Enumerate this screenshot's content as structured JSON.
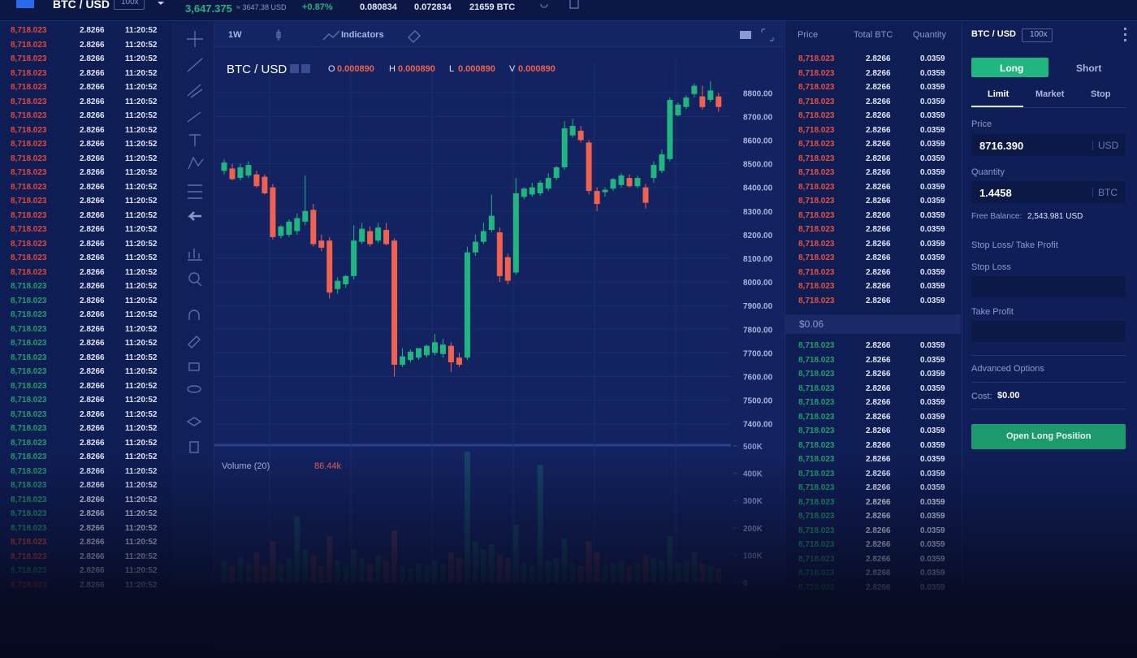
{
  "header": {
    "pair": "BTC / USD",
    "leverage": "100x",
    "price": "3,647.375",
    "price_usd": "≈ 3647.38 USD",
    "change": "+0.87%",
    "stats": [
      "0.080834",
      "0.072834",
      "21659 BTC"
    ]
  },
  "trades": {
    "rows": [
      [
        "8,718.023",
        "2.8266",
        "11:20:52"
      ],
      [
        "8,718.023",
        "2.8266",
        "11:20:52"
      ],
      [
        "8,718.023",
        "2.8266",
        "11:20:52"
      ],
      [
        "8,718.023",
        "2.8266",
        "11:20:52"
      ],
      [
        "8,718.023",
        "2.8266",
        "11:20:52"
      ],
      [
        "8,718.023",
        "2.8266",
        "11:20:52"
      ],
      [
        "8,718.023",
        "2.8266",
        "11:20:52"
      ],
      [
        "8,718.023",
        "2.8266",
        "11:20:52"
      ],
      [
        "8,718.023",
        "2.8266",
        "11:20:52"
      ],
      [
        "8,718.023",
        "2.8266",
        "11:20:52"
      ],
      [
        "8,718.023",
        "2.8266",
        "11:20:52"
      ],
      [
        "8,718.023",
        "2.8266",
        "11:20:52"
      ],
      [
        "8,718.023",
        "2.8266",
        "11:20:52"
      ],
      [
        "8,718.023",
        "2.8266",
        "11:20:52"
      ],
      [
        "8,718.023",
        "2.8266",
        "11:20:52"
      ],
      [
        "8,718.023",
        "2.8266",
        "11:20:52"
      ],
      [
        "8,718.023",
        "2.8266",
        "11:20:52"
      ],
      [
        "8,718.023",
        "2.8266",
        "11:20:52"
      ],
      [
        "8,718.023",
        "2.8266",
        "11:20:52"
      ],
      [
        "8,718.023",
        "2.8266",
        "11:20:52"
      ],
      [
        "8,718.023",
        "2.8266",
        "11:20:52"
      ],
      [
        "8,718.023",
        "2.8266",
        "11:20:52"
      ],
      [
        "8,718.023",
        "2.8266",
        "11:20:52"
      ],
      [
        "8,718.023",
        "2.8266",
        "11:20:52"
      ],
      [
        "8,718.023",
        "2.8266",
        "11:20:52"
      ],
      [
        "8,718.023",
        "2.8266",
        "11:20:52"
      ],
      [
        "8,718.023",
        "2.8266",
        "11:20:52"
      ],
      [
        "8,718.023",
        "2.8266",
        "11:20:52"
      ],
      [
        "8,718.023",
        "2.8266",
        "11:20:52"
      ],
      [
        "8,718.023",
        "2.8266",
        "11:20:52"
      ],
      [
        "8,718.023",
        "2.8266",
        "11:20:52"
      ],
      [
        "8,718.023",
        "2.8266",
        "11:20:52"
      ],
      [
        "8,718.023",
        "2.8266",
        "11:20:52"
      ],
      [
        "8,718.023",
        "2.8266",
        "11:20:52"
      ],
      [
        "8,718.023",
        "2.8266",
        "11:20:52"
      ],
      [
        "8,718.023",
        "2.8266",
        "11:20:52"
      ],
      [
        "8,718.023",
        "2.8266",
        "11:20:52"
      ],
      [
        "8,718.023",
        "2.8266",
        "11:20:52"
      ],
      [
        "8,718.023",
        "2.8266",
        "11:20:52"
      ],
      [
        "8,718.023",
        "2.8266",
        "11:20:52"
      ]
    ],
    "colors": [
      "#e0493a",
      "#e0493a",
      "#e0493a",
      "#e0493a",
      "#e0493a",
      "#e0493a",
      "#e0493a",
      "#e0493a",
      "#e0493a",
      "#e0493a",
      "#e0493a",
      "#e0493a",
      "#e0493a",
      "#e0493a",
      "#e0493a",
      "#e0493a",
      "#e0493a",
      "#e0493a",
      "#1f9f6c",
      "#1f9f6c",
      "#1f9f6c",
      "#1f9f6c",
      "#1f9f6c",
      "#1f9f6c",
      "#1f9f6c",
      "#1f9f6c",
      "#1f9f6c",
      "#1f9f6c",
      "#1f9f6c",
      "#1f9f6c",
      "#1f9f6c",
      "#1f9f6c",
      "#1f9f6c",
      "#1f9f6c",
      "#1f9f6c",
      "#1f9f6c",
      "#e0493a",
      "#e0493a",
      "#1f9f6c",
      "#e0493a"
    ]
  },
  "toolbar": {
    "interval": "1W",
    "indicators": "Indicators"
  },
  "chart": {
    "type": "candlestick",
    "title": "BTC / USD",
    "ohlc": [
      {
        "label": "O",
        "value": "0.000890"
      },
      {
        "label": "H",
        "value": "0.000890"
      },
      {
        "label": "L",
        "value": "0.000890"
      },
      {
        "label": "V",
        "value": "0.000890"
      }
    ],
    "up_color": "#1fb67f",
    "down_color": "#f0624d",
    "grid": true,
    "ylim": [
      7320,
      8935
    ],
    "yticks": [
      {
        "value": 8800,
        "label": "8800.00"
      },
      {
        "value": 8700,
        "label": "8700.00"
      },
      {
        "value": 8600,
        "label": "8600.00"
      },
      {
        "value": 8500,
        "label": "8500.00"
      },
      {
        "value": 8400,
        "label": "8400.00"
      },
      {
        "value": 8300,
        "label": "8300.00"
      },
      {
        "value": 8200,
        "label": "8200.00"
      },
      {
        "value": 8100,
        "label": "8100.00"
      },
      {
        "value": 8000,
        "label": "8000.00"
      },
      {
        "value": 7900,
        "label": "7900.00"
      },
      {
        "value": 7800,
        "label": "7800.00"
      },
      {
        "value": 7700,
        "label": "7700.00"
      },
      {
        "value": 7600,
        "label": "7600.00"
      },
      {
        "value": 7500,
        "label": "7500.00"
      },
      {
        "value": 7400,
        "label": "7400.00"
      }
    ],
    "candles": [
      [
        8470,
        8520,
        8455,
        8505
      ],
      [
        8480,
        8500,
        8430,
        8435
      ],
      [
        8440,
        8500,
        8430,
        8485
      ],
      [
        8450,
        8510,
        8440,
        8495
      ],
      [
        8455,
        8470,
        8400,
        8405
      ],
      [
        8445,
        8455,
        8370,
        8375
      ],
      [
        8400,
        8415,
        8180,
        8190
      ],
      [
        8195,
        8240,
        8185,
        8235
      ],
      [
        8200,
        8265,
        8190,
        8255
      ],
      [
        8215,
        8290,
        8200,
        8270
      ],
      [
        8255,
        8450,
        8240,
        8300
      ],
      [
        8305,
        8330,
        8150,
        8160
      ],
      [
        8175,
        8200,
        8130,
        8145
      ],
      [
        8175,
        8190,
        7930,
        7955
      ],
      [
        7970,
        8020,
        7950,
        8005
      ],
      [
        7990,
        8030,
        7975,
        8025
      ],
      [
        8025,
        8240,
        8010,
        8175
      ],
      [
        8170,
        8250,
        8160,
        8225
      ],
      [
        8215,
        8235,
        8150,
        8160
      ],
      [
        8175,
        8250,
        8165,
        8230
      ],
      [
        8220,
        8250,
        8155,
        8160
      ],
      [
        8175,
        8185,
        7600,
        7650
      ],
      [
        7650,
        7720,
        7640,
        7685
      ],
      [
        7670,
        7715,
        7660,
        7705
      ],
      [
        7680,
        7720,
        7670,
        7720
      ],
      [
        7690,
        7735,
        7680,
        7730
      ],
      [
        7700,
        7780,
        7690,
        7745
      ],
      [
        7695,
        7760,
        7680,
        7735
      ],
      [
        7730,
        7745,
        7620,
        7660
      ],
      [
        7680,
        7700,
        7640,
        7650
      ],
      [
        7680,
        8150,
        7670,
        8125
      ],
      [
        8125,
        8200,
        8110,
        8170
      ],
      [
        8170,
        8250,
        8160,
        8215
      ],
      [
        8220,
        8370,
        8210,
        8280
      ],
      [
        8210,
        8230,
        8000,
        8025
      ],
      [
        8105,
        8120,
        7990,
        8005
      ],
      [
        8040,
        8440,
        8030,
        8375
      ],
      [
        8360,
        8400,
        8350,
        8395
      ],
      [
        8370,
        8420,
        8360,
        8400
      ],
      [
        8375,
        8430,
        8365,
        8420
      ],
      [
        8395,
        8460,
        8385,
        8440
      ],
      [
        8440,
        8490,
        8430,
        8485
      ],
      [
        8485,
        8680,
        8475,
        8650
      ],
      [
        8620,
        8690,
        8610,
        8660
      ],
      [
        8640,
        8660,
        8590,
        8600
      ],
      [
        8590,
        8600,
        8370,
        8385
      ],
      [
        8385,
        8400,
        8300,
        8330
      ],
      [
        8380,
        8400,
        8360,
        8390
      ],
      [
        8395,
        8440,
        8385,
        8435
      ],
      [
        8410,
        8460,
        8400,
        8450
      ],
      [
        8440,
        8455,
        8400,
        8405
      ],
      [
        8405,
        8450,
        8395,
        8440
      ],
      [
        8400,
        8415,
        8310,
        8335
      ],
      [
        8440,
        8510,
        8420,
        8495
      ],
      [
        8470,
        8560,
        8460,
        8540
      ],
      [
        8520,
        8780,
        8510,
        8770
      ],
      [
        8705,
        8760,
        8700,
        8750
      ],
      [
        8740,
        8790,
        8730,
        8780
      ],
      [
        8795,
        8840,
        8780,
        8830
      ],
      [
        8785,
        8830,
        8730,
        8740
      ],
      [
        8770,
        8850,
        8760,
        8810
      ],
      [
        8785,
        8800,
        8720,
        8740
      ]
    ],
    "volume": {
      "title": "Volume (20)",
      "value": "86.44k",
      "ylim": [
        0,
        500000
      ],
      "yticks": [
        {
          "value": 500000,
          "label": "500K"
        },
        {
          "value": 400000,
          "label": "400K"
        },
        {
          "value": 300000,
          "label": "300K"
        },
        {
          "value": 200000,
          "label": "200K"
        },
        {
          "value": 100000,
          "label": "100K"
        },
        0
      ],
      "values": [
        80000,
        60000,
        90000,
        70000,
        110000,
        60000,
        150000,
        70000,
        90000,
        240000,
        120000,
        100000,
        60000,
        170000,
        80000,
        60000,
        120000,
        90000,
        70000,
        100000,
        80000,
        190000,
        60000,
        50000,
        70000,
        60000,
        80000,
        70000,
        110000,
        90000,
        480000,
        150000,
        120000,
        140000,
        100000,
        90000,
        210000,
        70000,
        60000,
        430000,
        80000,
        90000,
        160000,
        70000,
        60000,
        150000,
        110000,
        60000,
        70000,
        80000,
        60000,
        70000,
        100000,
        90000,
        80000,
        170000,
        70000,
        80000,
        110000,
        70000,
        60000,
        50000
      ]
    }
  },
  "order_book": {
    "headers": [
      "Price",
      "Total BTC",
      "Quantity"
    ],
    "asks": {
      "color": "#e8513e",
      "rows": [
        [
          "8,718.023",
          "2.8266",
          "0.0359"
        ],
        [
          "8,718.023",
          "2.8266",
          "0.0359"
        ],
        [
          "8,718.023",
          "2.8266",
          "0.0359"
        ],
        [
          "8,718.023",
          "2.8266",
          "0.0359"
        ],
        [
          "8,718.023",
          "2.8266",
          "0.0359"
        ],
        [
          "8,718.023",
          "2.8266",
          "0.0359"
        ],
        [
          "8,718.023",
          "2.8266",
          "0.0359"
        ],
        [
          "8,718.023",
          "2.8266",
          "0.0359"
        ],
        [
          "8,718.023",
          "2.8266",
          "0.0359"
        ],
        [
          "8,718.023",
          "2.8266",
          "0.0359"
        ],
        [
          "8,718.023",
          "2.8266",
          "0.0359"
        ],
        [
          "8,718.023",
          "2.8266",
          "0.0359"
        ],
        [
          "8,718.023",
          "2.8266",
          "0.0359"
        ],
        [
          "8,718.023",
          "2.8266",
          "0.0359"
        ],
        [
          "8,718.023",
          "2.8266",
          "0.0359"
        ],
        [
          "8,718.023",
          "2.8266",
          "0.0359"
        ],
        [
          "8,718.023",
          "2.8266",
          "0.0359"
        ],
        [
          "8,718.023",
          "2.8266",
          "0.0359"
        ]
      ]
    },
    "spread": "$0.06",
    "bids": {
      "color": "#1fa06d",
      "rows": [
        [
          "8,718.023",
          "2.8266",
          "0.0359"
        ],
        [
          "8,718.023",
          "2.8266",
          "0.0359"
        ],
        [
          "8,718.023",
          "2.8266",
          "0.0359"
        ],
        [
          "8,718.023",
          "2.8266",
          "0.0359"
        ],
        [
          "8,718.023",
          "2.8266",
          "0.0359"
        ],
        [
          "8,718.023",
          "2.8266",
          "0.0359"
        ],
        [
          "8,718.023",
          "2.8266",
          "0.0359"
        ],
        [
          "8,718.023",
          "2.8266",
          "0.0359"
        ],
        [
          "8,718.023",
          "2.8266",
          "0.0359"
        ],
        [
          "8,718.023",
          "2.8266",
          "0.0359"
        ],
        [
          "8,718.023",
          "2.8266",
          "0.0359"
        ],
        [
          "8,718.023",
          "2.8266",
          "0.0359"
        ],
        [
          "8,718.023",
          "2.8266",
          "0.0359"
        ],
        [
          "8,718.023",
          "2.8266",
          "0.0359"
        ],
        [
          "8,718.023",
          "2.8266",
          "0.0359"
        ],
        [
          "8,718.023",
          "2.8266",
          "0.0359"
        ],
        [
          "8,718.023",
          "2.8266",
          "0.0359"
        ],
        [
          "8,718.023",
          "2.8266",
          "0.0359"
        ]
      ]
    }
  },
  "order_form": {
    "pair": "BTC / USD",
    "leverage": "100x",
    "sides": [
      "Long",
      "Short"
    ],
    "order_types": [
      "Limit",
      "Market",
      "Stop"
    ],
    "price": {
      "label": "Price",
      "value": "8716.390",
      "unit": "USD"
    },
    "quantity": {
      "label": "Quantity",
      "value": "1.4458",
      "unit": "BTC"
    },
    "balance": {
      "label": "Free Balance:",
      "value": "2,543.981 USD"
    },
    "sl_tp": "Stop Loss/ Take Profit",
    "stop_loss": "Stop Loss",
    "take_profit": "Take Profit",
    "advanced": "Advanced Options",
    "cost": {
      "label": "Cost:",
      "value": "$0.00"
    },
    "submit": "Open Long Position"
  }
}
